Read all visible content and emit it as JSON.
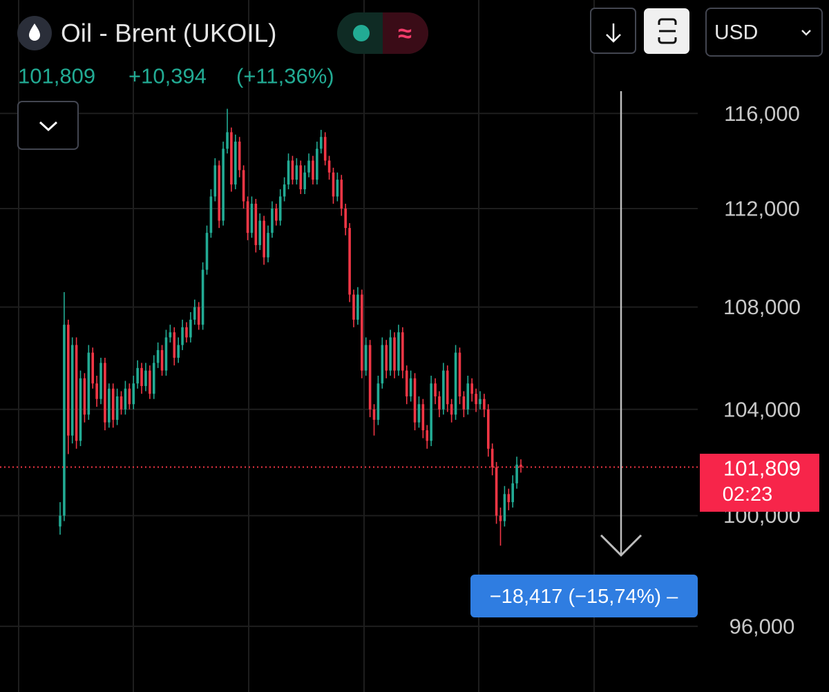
{
  "chart_data": {
    "type": "candlestick",
    "title": "Oil - Brent (UKOIL)",
    "status_icon": "≈",
    "currency": "USD",
    "price": "101,809",
    "change": "+10,394",
    "change_percent": "(+11,36%)",
    "last_price": {
      "value": 101.809,
      "label": "101,809"
    },
    "countdown": "02:23",
    "annotation": "−18,417 (−15,74%) –",
    "log_scale": true,
    "grid": true,
    "up_color": "#22ab94",
    "down_color": "#f23645",
    "ylim": [
      93.7,
      120.96
    ],
    "yticks": [
      {
        "value": 96,
        "label": "96,000"
      },
      {
        "value": 100,
        "label": "100,000"
      },
      {
        "value": 104,
        "label": "104,000"
      },
      {
        "value": 108,
        "label": "108,000"
      },
      {
        "value": 112,
        "label": "112,000"
      },
      {
        "value": 116,
        "label": "116,000"
      }
    ],
    "open": [
      99.6,
      100.0,
      107.3,
      103.0,
      106.5,
      102.8,
      105.2,
      103.8,
      106.2,
      105.0,
      104.4,
      105.8,
      103.5,
      104.8,
      103.6,
      104.5,
      104.0,
      104.8,
      104.2,
      105.0,
      105.6,
      104.9,
      105.5,
      104.6,
      105.8,
      106.3,
      105.5,
      106.8,
      107.0,
      106.0,
      106.5,
      107.2,
      106.8,
      107.5,
      108.0,
      107.3,
      109.5,
      111.0,
      112.5,
      113.8,
      111.5,
      114.5,
      115.2,
      113.0,
      114.8,
      113.6,
      112.3,
      111.0,
      112.2,
      110.5,
      111.5,
      110.0,
      111.0,
      112.0,
      111.5,
      112.5,
      113.0,
      114.0,
      113.2,
      113.8,
      112.8,
      113.5,
      114.0,
      113.2,
      114.5,
      115.0,
      114.0,
      113.5,
      112.5,
      113.2,
      112.0,
      111.2,
      108.5,
      107.5,
      108.5,
      105.5,
      106.5,
      104.0,
      103.6,
      105.0,
      106.5,
      105.5,
      106.8,
      105.5,
      107.0,
      105.5,
      104.5,
      105.2,
      103.5,
      104.2,
      103.2,
      102.8,
      105.0,
      104.5,
      104.0,
      105.5,
      104.2,
      103.8,
      106.2,
      104.5,
      104.0,
      105.0,
      104.6,
      104.2,
      104.4,
      104.0,
      102.5,
      101.8,
      100.0,
      99.8,
      100.8,
      100.5,
      101.2,
      101.9
    ],
    "high": [
      100.5,
      108.6,
      107.5,
      106.8,
      106.8,
      105.5,
      105.4,
      106.5,
      106.4,
      105.3,
      106.0,
      106.0,
      105.0,
      105.0,
      104.8,
      104.7,
      105.1,
      105.0,
      105.3,
      105.9,
      105.8,
      105.8,
      105.7,
      106.1,
      106.6,
      106.5,
      107.1,
      107.3,
      107.2,
      106.8,
      107.5,
      107.4,
      107.8,
      108.3,
      108.2,
      109.8,
      111.3,
      112.8,
      114.1,
      114.0,
      114.8,
      116.2,
      115.4,
      115.1,
      115.0,
      113.8,
      112.5,
      112.5,
      112.4,
      111.8,
      111.7,
      111.3,
      112.3,
      112.2,
      112.8,
      113.3,
      114.3,
      114.2,
      114.1,
      114.0,
      113.8,
      114.3,
      114.2,
      114.8,
      115.3,
      115.2,
      114.2,
      113.7,
      113.5,
      113.4,
      112.2,
      111.4,
      108.7,
      108.8,
      108.7,
      106.8,
      106.7,
      104.2,
      105.3,
      106.8,
      106.7,
      107.1,
      107.0,
      107.3,
      107.2,
      105.7,
      105.5,
      105.4,
      104.5,
      104.4,
      103.4,
      105.3,
      105.2,
      104.7,
      105.8,
      105.7,
      104.4,
      106.5,
      106.4,
      104.7,
      105.3,
      105.2,
      104.8,
      104.7,
      104.6,
      104.2,
      102.7,
      102.0,
      100.3,
      101.1,
      101.0,
      101.5,
      102.2,
      102.1
    ],
    "low": [
      99.3,
      99.8,
      102.3,
      102.7,
      102.5,
      102.6,
      103.5,
      103.6,
      104.8,
      104.1,
      104.2,
      103.2,
      103.3,
      103.3,
      103.4,
      103.8,
      103.8,
      104.0,
      104.0,
      104.8,
      104.6,
      104.7,
      104.4,
      104.4,
      105.6,
      105.3,
      105.3,
      106.6,
      105.7,
      105.8,
      106.3,
      106.6,
      106.6,
      107.3,
      107.1,
      107.1,
      109.3,
      110.8,
      112.3,
      111.2,
      111.3,
      114.3,
      112.7,
      112.8,
      113.3,
      112.0,
      110.7,
      110.8,
      110.2,
      110.3,
      109.7,
      109.8,
      110.8,
      111.3,
      111.3,
      112.3,
      112.8,
      113.0,
      113.0,
      112.6,
      112.6,
      113.3,
      113.0,
      113.0,
      114.3,
      113.8,
      113.2,
      112.2,
      112.3,
      111.7,
      110.9,
      108.2,
      107.2,
      107.3,
      105.2,
      105.3,
      103.7,
      103.0,
      103.4,
      104.8,
      105.2,
      105.3,
      105.2,
      105.3,
      105.2,
      104.2,
      104.3,
      103.2,
      103.3,
      102.9,
      102.5,
      102.6,
      104.2,
      103.7,
      103.8,
      103.9,
      103.5,
      103.6,
      104.2,
      103.7,
      103.8,
      104.3,
      103.9,
      104.0,
      103.7,
      102.2,
      101.5,
      99.7,
      98.9,
      99.6,
      100.2,
      100.3,
      101.0,
      101.6
    ],
    "close": [
      100.0,
      107.3,
      103.0,
      106.5,
      102.8,
      105.2,
      103.8,
      106.2,
      105.0,
      104.4,
      105.8,
      103.5,
      104.8,
      103.6,
      104.5,
      104.0,
      104.8,
      104.2,
      105.0,
      105.6,
      104.9,
      105.5,
      104.6,
      105.8,
      106.3,
      105.5,
      106.8,
      107.0,
      106.0,
      106.5,
      107.2,
      106.8,
      107.5,
      108.0,
      107.3,
      109.5,
      111.0,
      112.5,
      113.8,
      111.5,
      114.5,
      115.2,
      113.0,
      114.8,
      113.6,
      112.3,
      111.0,
      112.2,
      110.5,
      111.5,
      110.0,
      111.0,
      112.0,
      111.5,
      112.5,
      113.0,
      114.0,
      113.2,
      113.8,
      112.8,
      113.5,
      114.0,
      113.2,
      114.5,
      115.0,
      114.0,
      113.5,
      112.5,
      113.2,
      112.0,
      111.2,
      108.5,
      107.5,
      108.5,
      105.5,
      106.5,
      104.0,
      103.6,
      105.0,
      106.5,
      105.5,
      106.8,
      105.5,
      107.0,
      105.5,
      104.5,
      105.2,
      103.5,
      104.2,
      103.2,
      102.8,
      105.0,
      104.5,
      104.0,
      105.5,
      104.2,
      103.8,
      106.2,
      104.5,
      104.0,
      105.0,
      104.6,
      104.2,
      104.4,
      104.0,
      102.5,
      101.8,
      100.0,
      99.8,
      100.8,
      100.5,
      101.2,
      101.9,
      101.809
    ]
  }
}
